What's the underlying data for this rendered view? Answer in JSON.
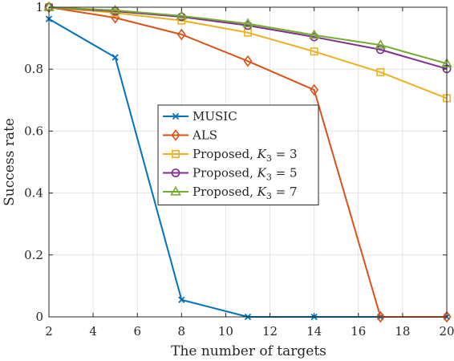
{
  "chart_data": {
    "type": "line",
    "xlabel": "The number of targets",
    "ylabel": "Success rate",
    "xlim": [
      2,
      20
    ],
    "ylim": [
      0,
      1
    ],
    "xticks": [
      "2",
      "4",
      "6",
      "8",
      "10",
      "12",
      "14",
      "16",
      "18",
      "20"
    ],
    "yticks": [
      "0",
      "0.2",
      "0.4",
      "0.6",
      "0.8",
      "1"
    ],
    "grid": true,
    "legend_position": "center-left",
    "x": [
      2,
      5,
      8,
      11,
      14,
      17,
      20
    ],
    "series": [
      {
        "name": "MUSIC",
        "name_parts": {
          "text": "MUSIC"
        },
        "color": "#0072BD",
        "marker": "x",
        "values": [
          0.962,
          0.838,
          0.055,
          0.0,
          0.0,
          0.0,
          0.0
        ]
      },
      {
        "name": "ALS",
        "name_parts": {
          "text": "ALS"
        },
        "color": "#D95319",
        "marker": "diamond",
        "values": [
          1.0,
          0.966,
          0.912,
          0.826,
          0.733,
          0.0,
          0.0
        ]
      },
      {
        "name": "Proposed, K3 = 3",
        "name_parts": {
          "text": "Proposed, ",
          "var": "K",
          "sub": "3",
          "eq": " = 3"
        },
        "color": "#EDB120",
        "marker": "square",
        "values": [
          1.0,
          0.982,
          0.957,
          0.918,
          0.857,
          0.79,
          0.706
        ]
      },
      {
        "name": "Proposed, K3 = 5",
        "name_parts": {
          "text": "Proposed, ",
          "var": "K",
          "sub": "3",
          "eq": " = 5"
        },
        "color": "#7E2F8E",
        "marker": "circle",
        "values": [
          1.0,
          0.987,
          0.969,
          0.941,
          0.904,
          0.863,
          0.801
        ]
      },
      {
        "name": "Proposed, K3 = 7",
        "name_parts": {
          "text": "Proposed, ",
          "var": "K",
          "sub": "3",
          "eq": " = 7"
        },
        "color": "#77AC30",
        "marker": "triangle",
        "values": [
          1.0,
          0.99,
          0.972,
          0.947,
          0.91,
          0.878,
          0.818
        ]
      }
    ]
  }
}
